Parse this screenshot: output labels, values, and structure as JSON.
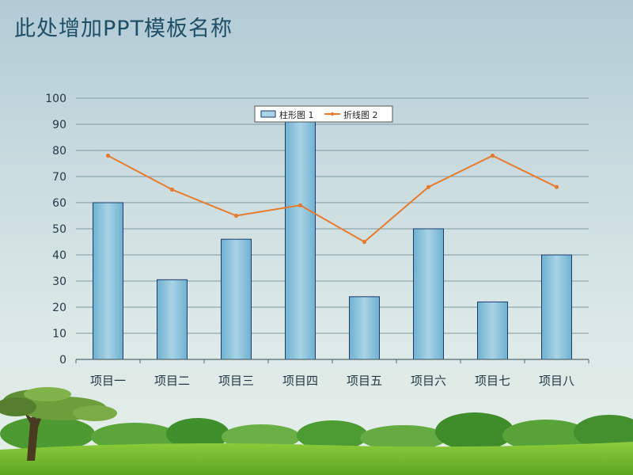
{
  "slide": {
    "title": "此处增加PPT模板名称"
  },
  "colors": {
    "bar_light": "#a8d3e6",
    "bar_dark": "#6fb1cf",
    "bar_stroke": "#1c3a6e",
    "line": "#e87a2e",
    "grid": "#7f9aa0",
    "axis_text": "#243848"
  },
  "chart_data": {
    "type": "bar",
    "categories": [
      "项目一",
      "项目二",
      "项目三",
      "项目四",
      "项目五",
      "项目六",
      "项目七",
      "项目八"
    ],
    "series": [
      {
        "name": "柱形图 1",
        "type": "bar",
        "values": [
          60,
          30.5,
          46,
          91,
          24,
          50,
          22,
          40
        ]
      },
      {
        "name": "折线图 2",
        "type": "line",
        "values": [
          78,
          65,
          55,
          59,
          45,
          66,
          78,
          66
        ]
      }
    ],
    "ylim": [
      0,
      100
    ],
    "yticks": [
      0,
      10,
      20,
      30,
      40,
      50,
      60,
      70,
      80,
      90,
      100
    ],
    "grid": true,
    "legend": "top-center"
  }
}
